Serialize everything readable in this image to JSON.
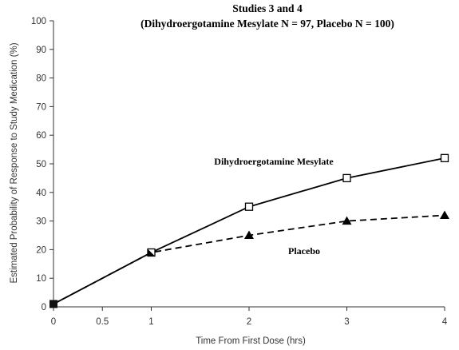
{
  "chart_data": {
    "type": "line",
    "title": "Studies 3 and 4",
    "subtitle": "(Dihydroergotamine Mesylate N = 97, Placebo N = 100)",
    "xlabel": "Time From First Dose (hrs)",
    "ylabel": "Estimated Probability of Response to Study Medication (%)",
    "xlim": [
      0,
      4
    ],
    "ylim": [
      0,
      100
    ],
    "xticks": [
      0,
      0.5,
      1,
      2,
      3,
      4
    ],
    "xtick_labels": [
      "0",
      "0.5",
      "1",
      "2",
      "3",
      "4"
    ],
    "yticks": [
      0,
      10,
      20,
      30,
      40,
      50,
      60,
      70,
      80,
      90,
      100
    ],
    "ytick_labels": [
      "0",
      "10",
      "20",
      "30",
      "40",
      "50",
      "60",
      "70",
      "80",
      "90",
      "100"
    ],
    "grid": false,
    "legend": "none",
    "series": [
      {
        "name": "Dihydroergotamine Mesylate",
        "line_style": "solid",
        "marker": "open-square",
        "color": "#000000",
        "x": [
          0,
          1,
          2,
          3,
          4
        ],
        "y": [
          1,
          19,
          35,
          45,
          52
        ]
      },
      {
        "name": "Placebo",
        "line_style": "dashed",
        "marker": "filled-triangle",
        "color": "#000000",
        "x": [
          0,
          1,
          2,
          3,
          4
        ],
        "y": [
          1,
          19,
          25,
          30,
          32
        ]
      }
    ]
  }
}
